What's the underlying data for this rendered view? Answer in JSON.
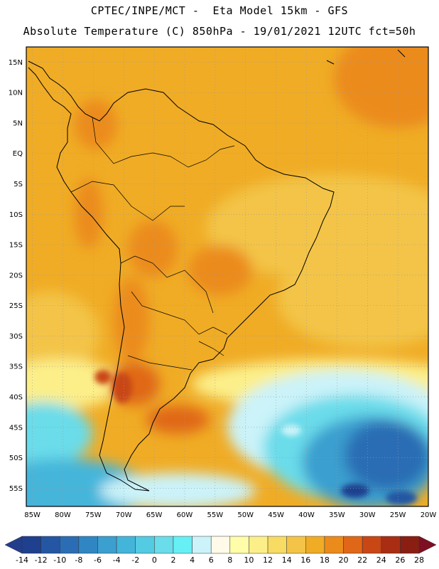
{
  "header": {
    "line1": "CPTEC/INPE/MCT -  Eta Model 15km - GFS",
    "line2": "Absolute Temperature (C) 850hPa - 19/01/2021 12UTC fct=50h"
  },
  "map": {
    "lat_labels": [
      "15N",
      "10N",
      "5N",
      "EQ",
      "5S",
      "10S",
      "15S",
      "20S",
      "25S",
      "30S",
      "35S",
      "40S",
      "45S",
      "50S",
      "55S"
    ],
    "lat_values": [
      15,
      10,
      5,
      0,
      -5,
      -10,
      -15,
      -20,
      -25,
      -30,
      -35,
      -40,
      -45,
      -50,
      -55
    ],
    "lon_labels": [
      "85W",
      "80W",
      "75W",
      "70W",
      "65W",
      "60W",
      "55W",
      "50W",
      "45W",
      "40W",
      "35W",
      "30W",
      "25W",
      "20W"
    ],
    "lon_values": [
      -85,
      -80,
      -75,
      -70,
      -65,
      -60,
      -55,
      -50,
      -45,
      -40,
      -35,
      -30,
      -25,
      -20
    ],
    "lat_range": [
      -58,
      17.5
    ],
    "lon_range": [
      -86,
      -20
    ],
    "grid": "dotted"
  },
  "colorbar": {
    "labels": [
      "-14",
      "-12",
      "-10",
      "-8",
      "-6",
      "-4",
      "-2",
      "0",
      "2",
      "4",
      "6",
      "8",
      "10",
      "12",
      "14",
      "16",
      "18",
      "20",
      "22",
      "24",
      "26",
      "28"
    ],
    "colors": [
      "#1f3f8f",
      "#2456a3",
      "#2a6db4",
      "#3086c3",
      "#3b9fcf",
      "#44b5da",
      "#52cbe3",
      "#6adcea",
      "#66f0f5",
      "#cbf3f9",
      "#fffbe8",
      "#fffcaa",
      "#fcef8a",
      "#f7db62",
      "#f3c447",
      "#f0ac25",
      "#eb8b1b",
      "#e06717",
      "#c94615",
      "#a92d12",
      "#8a1e12"
    ],
    "under_color": "#223d8c",
    "over_color": "#7e0f22"
  }
}
